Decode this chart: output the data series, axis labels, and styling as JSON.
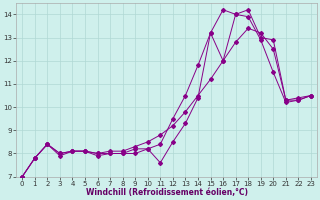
{
  "xlabel": "Windchill (Refroidissement éolien,°C)",
  "background_color": "#cff0ec",
  "grid_color": "#b0d8d4",
  "line_color": "#880088",
  "xlim": [
    -0.5,
    23.5
  ],
  "ylim": [
    7.0,
    14.5
  ],
  "yticks": [
    7,
    8,
    9,
    10,
    11,
    12,
    13,
    14
  ],
  "xticks": [
    0,
    1,
    2,
    3,
    4,
    5,
    6,
    7,
    8,
    9,
    10,
    11,
    12,
    13,
    14,
    15,
    16,
    17,
    18,
    19,
    20,
    21,
    22,
    23
  ],
  "series1_x": [
    0,
    1,
    2,
    3,
    4,
    5,
    6,
    7,
    8,
    9,
    10,
    11,
    12,
    13,
    14,
    15,
    16,
    17,
    18,
    19,
    20,
    21,
    22,
    23
  ],
  "series1_y": [
    7.0,
    7.8,
    8.4,
    7.9,
    8.1,
    8.1,
    7.9,
    8.0,
    8.0,
    8.0,
    8.2,
    7.6,
    8.5,
    9.3,
    10.4,
    13.2,
    12.0,
    14.0,
    13.9,
    12.9,
    11.5,
    10.2,
    10.3,
    10.5
  ],
  "series2_x": [
    0,
    1,
    2,
    3,
    4,
    5,
    6,
    7,
    8,
    9,
    10,
    11,
    12,
    13,
    14,
    15,
    16,
    17,
    18,
    19,
    20,
    21,
    22,
    23
  ],
  "series2_y": [
    7.0,
    7.8,
    8.4,
    8.0,
    8.1,
    8.1,
    8.0,
    8.0,
    8.0,
    8.2,
    8.2,
    8.4,
    9.5,
    10.5,
    11.8,
    13.2,
    14.2,
    14.0,
    14.2,
    13.0,
    12.9,
    10.3,
    10.4,
    10.5
  ],
  "series3_x": [
    0,
    1,
    2,
    3,
    4,
    5,
    6,
    7,
    8,
    9,
    10,
    11,
    12,
    13,
    14,
    15,
    16,
    17,
    18,
    19,
    20,
    21,
    22,
    23
  ],
  "series3_y": [
    7.0,
    7.8,
    8.4,
    8.0,
    8.1,
    8.1,
    8.0,
    8.1,
    8.1,
    8.3,
    8.5,
    8.8,
    9.2,
    9.8,
    10.5,
    11.2,
    12.0,
    12.8,
    13.4,
    13.2,
    12.5,
    10.3,
    10.3,
    10.5
  ]
}
